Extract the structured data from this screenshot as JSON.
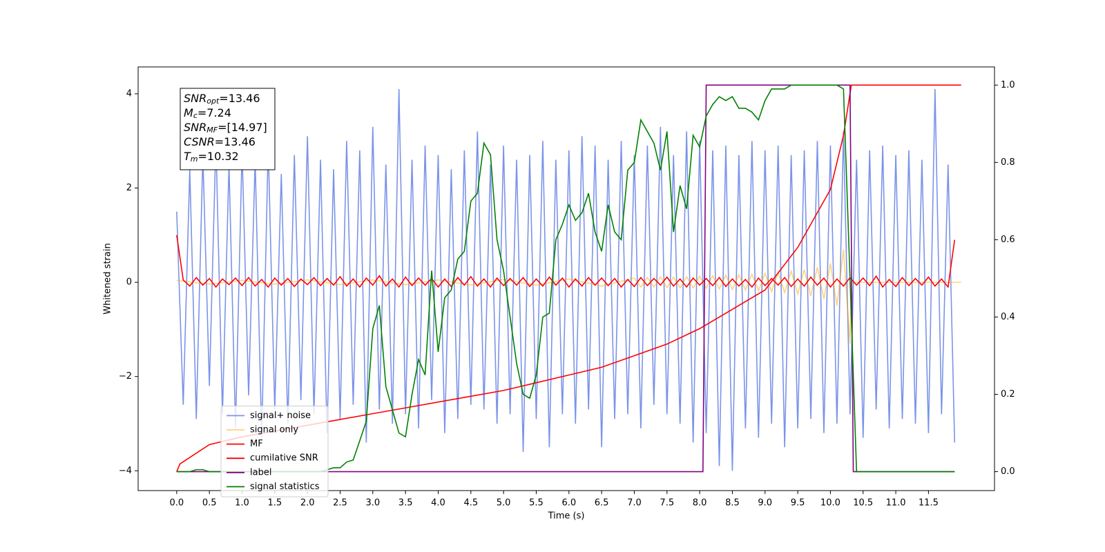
{
  "chart_data": {
    "type": "line",
    "xlabel": "Time (s)",
    "ylabel": "Whitened strain",
    "xlim": [
      -0.59,
      12.51
    ],
    "ylim": [
      -4.42,
      4.57
    ],
    "y2lim": [
      -0.049,
      1.047
    ],
    "xticks": [
      {
        "value": 0,
        "label": "0.0"
      },
      {
        "value": 0.5,
        "label": "0.5"
      },
      {
        "value": 1,
        "label": "1.0"
      },
      {
        "value": 1.5,
        "label": "1.5"
      },
      {
        "value": 2,
        "label": "2.0"
      },
      {
        "value": 2.5,
        "label": "2.5"
      },
      {
        "value": 3,
        "label": "3.0"
      },
      {
        "value": 3.5,
        "label": "3.5"
      },
      {
        "value": 4,
        "label": "4.0"
      },
      {
        "value": 4.5,
        "label": "4.5"
      },
      {
        "value": 5,
        "label": "5.0"
      },
      {
        "value": 5.5,
        "label": "5.5"
      },
      {
        "value": 6,
        "label": "6.0"
      },
      {
        "value": 6.5,
        "label": "6.5"
      },
      {
        "value": 7,
        "label": "7.0"
      },
      {
        "value": 7.5,
        "label": "7.5"
      },
      {
        "value": 8,
        "label": "8.0"
      },
      {
        "value": 8.5,
        "label": "8.5"
      },
      {
        "value": 9,
        "label": "9.0"
      },
      {
        "value": 9.5,
        "label": "9.5"
      },
      {
        "value": 10,
        "label": "10.0"
      },
      {
        "value": 10.5,
        "label": "10.5"
      },
      {
        "value": 11,
        "label": "11.0"
      },
      {
        "value": 11.5,
        "label": "11.5"
      }
    ],
    "yticks": [
      {
        "value": -4,
        "label": "−4"
      },
      {
        "value": -2,
        "label": "−2"
      },
      0,
      2,
      4
    ],
    "y2ticks": [
      {
        "value": 0,
        "label": "0.0"
      },
      {
        "value": 0.2,
        "label": "0.2"
      },
      {
        "value": 0.4,
        "label": "0.4"
      },
      {
        "value": 0.6,
        "label": "0.6"
      },
      {
        "value": 0.8,
        "label": "0.8"
      },
      {
        "value": 1,
        "label": "1.0"
      }
    ],
    "legend_loc": "lower left",
    "annotation": [
      {
        "text": "SNR",
        "sub": "opt",
        "value": "=13.46"
      },
      {
        "text": "M",
        "sub": "c",
        "value": "=7.24"
      },
      {
        "text": "SNR",
        "sub": "MF",
        "value": "=[14.97]"
      },
      {
        "text": "CSNR",
        "value": "=13.46"
      },
      {
        "text": "T",
        "sub": "m",
        "value": "=10.32"
      }
    ],
    "x": [
      0,
      0.1,
      0.2,
      0.3,
      0.4,
      0.5,
      0.6,
      0.7,
      0.8,
      0.9,
      1,
      1.1,
      1.2,
      1.3,
      1.4,
      1.5,
      1.6,
      1.7,
      1.8,
      1.9,
      2,
      2.1,
      2.2,
      2.3,
      2.4,
      2.5,
      2.6,
      2.7,
      2.8,
      2.9,
      3,
      3.1,
      3.2,
      3.3,
      3.4,
      3.5,
      3.6,
      3.7,
      3.8,
      3.9,
      4,
      4.1,
      4.2,
      4.3,
      4.4,
      4.5,
      4.6,
      4.7,
      4.8,
      4.9,
      5,
      5.1,
      5.2,
      5.3,
      5.4,
      5.5,
      5.6,
      5.7,
      5.8,
      5.9,
      6,
      6.1,
      6.2,
      6.3,
      6.4,
      6.5,
      6.6,
      6.7,
      6.8,
      6.9,
      7,
      7.1,
      7.2,
      7.3,
      7.4,
      7.5,
      7.6,
      7.7,
      7.8,
      7.9,
      8,
      8.1,
      8.2,
      8.3,
      8.4,
      8.5,
      8.6,
      8.7,
      8.8,
      8.9,
      9,
      9.1,
      9.2,
      9.3,
      9.4,
      9.5,
      9.6,
      9.7,
      9.8,
      9.9,
      10,
      10.1,
      10.2,
      10.3,
      10.4,
      10.5,
      10.6,
      10.7,
      10.8,
      10.9,
      11,
      11.1,
      11.2,
      11.3,
      11.4,
      11.5,
      11.6,
      11.7,
      11.8,
      11.9
    ],
    "series": [
      {
        "name": "signal+ noise",
        "color": "#7b93e8",
        "values": [
          1.5,
          -2.6,
          2.4,
          -2.9,
          2.7,
          -2.2,
          3.0,
          -2.8,
          2.5,
          -3.1,
          2.8,
          -2.4,
          2.6,
          -3.3,
          2.9,
          -2.7,
          2.3,
          -3.0,
          2.7,
          -2.5,
          3.1,
          -2.8,
          2.6,
          -3.2,
          2.4,
          -2.9,
          3.0,
          -2.6,
          2.8,
          -3.4,
          3.3,
          -2.7,
          2.5,
          -3.0,
          4.1,
          -2.8,
          2.6,
          -3.1,
          2.9,
          -2.5,
          2.7,
          -3.2,
          2.4,
          -2.9,
          2.8,
          -2.6,
          3.2,
          -2.7,
          2.5,
          -3.0,
          2.9,
          -2.8,
          2.6,
          -3.6,
          2.7,
          -2.9,
          3.0,
          -3.5,
          2.6,
          -2.8,
          2.8,
          -3.0,
          3.1,
          -2.7,
          2.9,
          -3.5,
          2.6,
          -2.9,
          3.0,
          -2.8,
          2.7,
          -3.1,
          2.9,
          -2.6,
          3.3,
          -2.8,
          2.7,
          -3.0,
          3.2,
          -3.4,
          3.0,
          -3.2,
          2.8,
          -3.9,
          2.9,
          -4.0,
          2.7,
          -3.1,
          3.0,
          -3.3,
          2.8,
          -3.0,
          2.9,
          -3.5,
          2.7,
          -3.1,
          2.8,
          -2.9,
          3.0,
          -3.2,
          2.9,
          -3.0,
          3.2,
          -2.8,
          2.6,
          -3.3,
          2.8,
          -2.7,
          2.9,
          -3.1,
          2.7,
          -2.9,
          2.8,
          -3.0,
          2.6,
          -3.2,
          4.1,
          -2.8,
          2.5,
          -3.4
        ]
      },
      {
        "name": "signal only",
        "color": "#ffa500",
        "x": [
          0,
          0.5,
          1,
          1.5,
          2,
          2.5,
          3,
          3.5,
          4,
          4.5,
          5,
          5.5,
          6,
          6.5,
          7,
          7.1,
          7.2,
          7.3,
          7.4,
          7.5,
          7.6,
          7.7,
          7.8,
          7.9,
          8,
          8.1,
          8.2,
          8.3,
          8.4,
          8.5,
          8.6,
          8.7,
          8.8,
          8.9,
          9,
          9.1,
          9.2,
          9.3,
          9.4,
          9.5,
          9.6,
          9.7,
          9.8,
          9.9,
          10,
          10.1,
          10.2,
          10.3,
          10.32,
          12
        ],
        "values": [
          0.04,
          -0.04,
          0.04,
          -0.04,
          0.05,
          -0.05,
          0.05,
          -0.05,
          0.05,
          -0.06,
          0.06,
          -0.06,
          0.07,
          -0.08,
          0.09,
          -0.1,
          0.1,
          -0.1,
          0.11,
          -0.11,
          0.11,
          -0.12,
          0.12,
          -0.12,
          0.13,
          -0.13,
          0.14,
          -0.14,
          0.15,
          -0.15,
          0.16,
          -0.16,
          0.17,
          -0.18,
          0.19,
          -0.2,
          0.21,
          -0.22,
          0.24,
          -0.25,
          0.27,
          -0.29,
          0.32,
          -0.35,
          0.4,
          -0.5,
          0.7,
          -1.3,
          0,
          0
        ]
      },
      {
        "name": "MF",
        "color": "#ff0000",
        "values": [
          1.0,
          0.05,
          -0.08,
          0.1,
          -0.06,
          0.08,
          -0.1,
          0.07,
          -0.05,
          0.09,
          -0.07,
          0.1,
          -0.08,
          0.06,
          -0.1,
          0.09,
          -0.06,
          0.08,
          -0.09,
          0.07,
          -0.05,
          0.1,
          -0.07,
          0.08,
          -0.06,
          0.12,
          -0.08,
          0.07,
          -0.1,
          0.09,
          -0.06,
          0.14,
          -0.08,
          0.07,
          -0.1,
          0.11,
          -0.07,
          0.09,
          -0.06,
          0.08,
          -0.1,
          0.07,
          -0.09,
          0.1,
          -0.06,
          0.12,
          -0.08,
          0.07,
          -0.1,
          0.09,
          -0.07,
          0.08,
          -0.06,
          0.1,
          -0.09,
          0.07,
          -0.08,
          0.11,
          -0.06,
          0.09,
          -0.1,
          0.07,
          -0.08,
          0.1,
          -0.06,
          0.09,
          -0.07,
          0.08,
          -0.1,
          0.06,
          -0.09,
          0.1,
          -0.07,
          0.08,
          -0.06,
          0.11,
          -0.08,
          0.07,
          -0.1,
          0.09,
          -0.06,
          0.08,
          -0.07,
          0.1,
          -0.09,
          0.07,
          -0.08,
          0.06,
          -0.1,
          0.09,
          -0.07,
          0.08,
          -0.06,
          0.1,
          -0.09,
          0.07,
          -0.08,
          0.11,
          -0.06,
          0.09,
          -0.1,
          0.07,
          -0.08,
          0.1,
          -0.06,
          0.09,
          -0.07,
          0.13,
          -0.1,
          0.06,
          -0.09,
          0.1,
          -0.07,
          0.08,
          -0.06,
          0.11,
          -0.08,
          0.07,
          -0.1,
          0.9
        ]
      },
      {
        "name": "cumilative SNR",
        "color": "#ff0000",
        "axis": "y2",
        "x": [
          0,
          0.05,
          0.5,
          1,
          1.5,
          2,
          2.5,
          3,
          3.5,
          4,
          4.5,
          5,
          5.5,
          6,
          6.5,
          7,
          7.5,
          8,
          8.5,
          9,
          9.5,
          10,
          10.2,
          10.32,
          12
        ],
        "values": [
          0,
          0.02,
          0.07,
          0.09,
          0.105,
          0.12,
          0.135,
          0.15,
          0.165,
          0.18,
          0.195,
          0.21,
          0.23,
          0.25,
          0.27,
          0.3,
          0.33,
          0.37,
          0.42,
          0.47,
          0.58,
          0.73,
          0.87,
          1.0,
          1.0
        ]
      },
      {
        "name": "label",
        "color": "#800080",
        "axis": "y2",
        "x": [
          0,
          8.05,
          8.1,
          10.3,
          10.35,
          11.9
        ],
        "values": [
          0,
          0,
          1,
          1,
          0,
          0
        ]
      },
      {
        "name": "signal statistics",
        "color": "#008000",
        "axis": "y2",
        "values": [
          0,
          0,
          0,
          0.005,
          0.005,
          0,
          0,
          0,
          0,
          0,
          0,
          0,
          0,
          0,
          0,
          0,
          0,
          0,
          0,
          0,
          0,
          0,
          0,
          0.005,
          0.01,
          0.01,
          0.025,
          0.03,
          0.08,
          0.13,
          0.37,
          0.43,
          0.22,
          0.16,
          0.1,
          0.09,
          0.2,
          0.29,
          0.25,
          0.52,
          0.31,
          0.45,
          0.47,
          0.55,
          0.57,
          0.7,
          0.72,
          0.85,
          0.82,
          0.6,
          0.52,
          0.4,
          0.28,
          0.2,
          0.19,
          0.25,
          0.4,
          0.41,
          0.6,
          0.64,
          0.69,
          0.65,
          0.67,
          0.72,
          0.62,
          0.57,
          0.69,
          0.62,
          0.6,
          0.78,
          0.8,
          0.91,
          0.88,
          0.85,
          0.78,
          0.88,
          0.62,
          0.74,
          0.68,
          0.87,
          0.84,
          0.92,
          0.95,
          0.97,
          0.96,
          0.97,
          0.94,
          0.94,
          0.93,
          0.91,
          0.96,
          0.99,
          0.99,
          0.99,
          1.0,
          1.0,
          1.0,
          1.0,
          1.0,
          1.0,
          1.0,
          1.0,
          0.99,
          0.5,
          0,
          0,
          0,
          0,
          0,
          0,
          0,
          0,
          0,
          0,
          0,
          0,
          0,
          0,
          0,
          0
        ]
      }
    ]
  }
}
